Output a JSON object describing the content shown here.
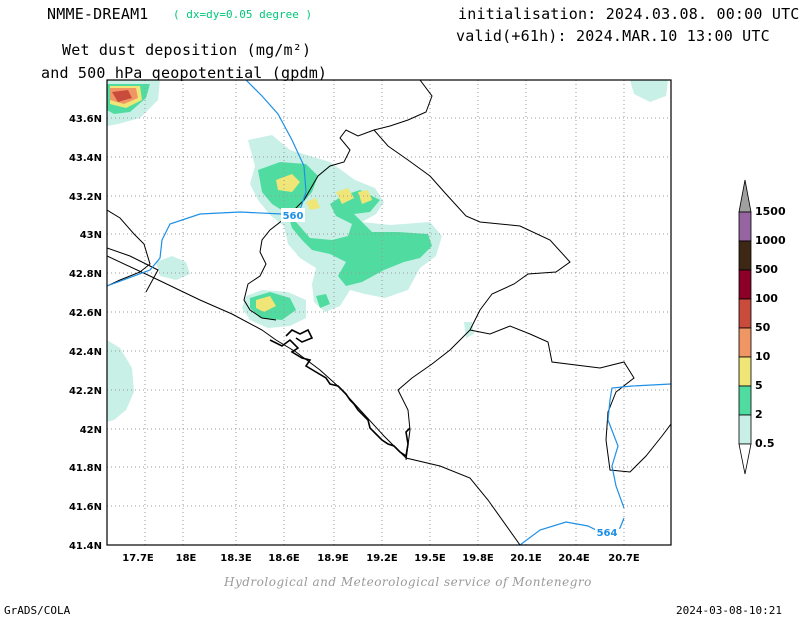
{
  "header": {
    "model": "NMME-DREAM1",
    "resolution": "( dx=dy=0.05 degree )",
    "title_line1": "Wet dust deposition (mg/m²)",
    "title_line2": "and 500 hPa geopotential (gpdm)",
    "init": "initialisation: 2024.03.08. 00:00 UTC",
    "valid": "valid(+61h): 2024.MAR.10 13:00 UTC"
  },
  "map": {
    "lat_labels": [
      "43.6N",
      "43.4N",
      "43.2N",
      "43N",
      "42.8N",
      "42.6N",
      "42.4N",
      "42.2N",
      "42N",
      "41.8N",
      "41.6N",
      "41.4N"
    ],
    "lon_labels": [
      "17.7E",
      "18E",
      "18.3E",
      "18.6E",
      "18.9E",
      "19.2E",
      "19.5E",
      "19.8E",
      "20.1E",
      "20.4E",
      "20.7E"
    ],
    "contour_labels": [
      "560",
      "564"
    ],
    "contour_color": "#1e90e6"
  },
  "legend": {
    "levels": [
      "0.5",
      "2",
      "5",
      "10",
      "50",
      "100",
      "500",
      "1000",
      "1500"
    ],
    "colors": [
      "#c8f0e6",
      "#50dca0",
      "#f0e678",
      "#f09664",
      "#c84b3c",
      "#8c0028",
      "#3c2814",
      "#9664a0",
      "#a0a0a0"
    ]
  },
  "footer": {
    "credit": "Hydrological and Meteorological service of Montenegro",
    "software": "GrADS/COLA",
    "timestamp": "2024-03-08-10:21"
  }
}
